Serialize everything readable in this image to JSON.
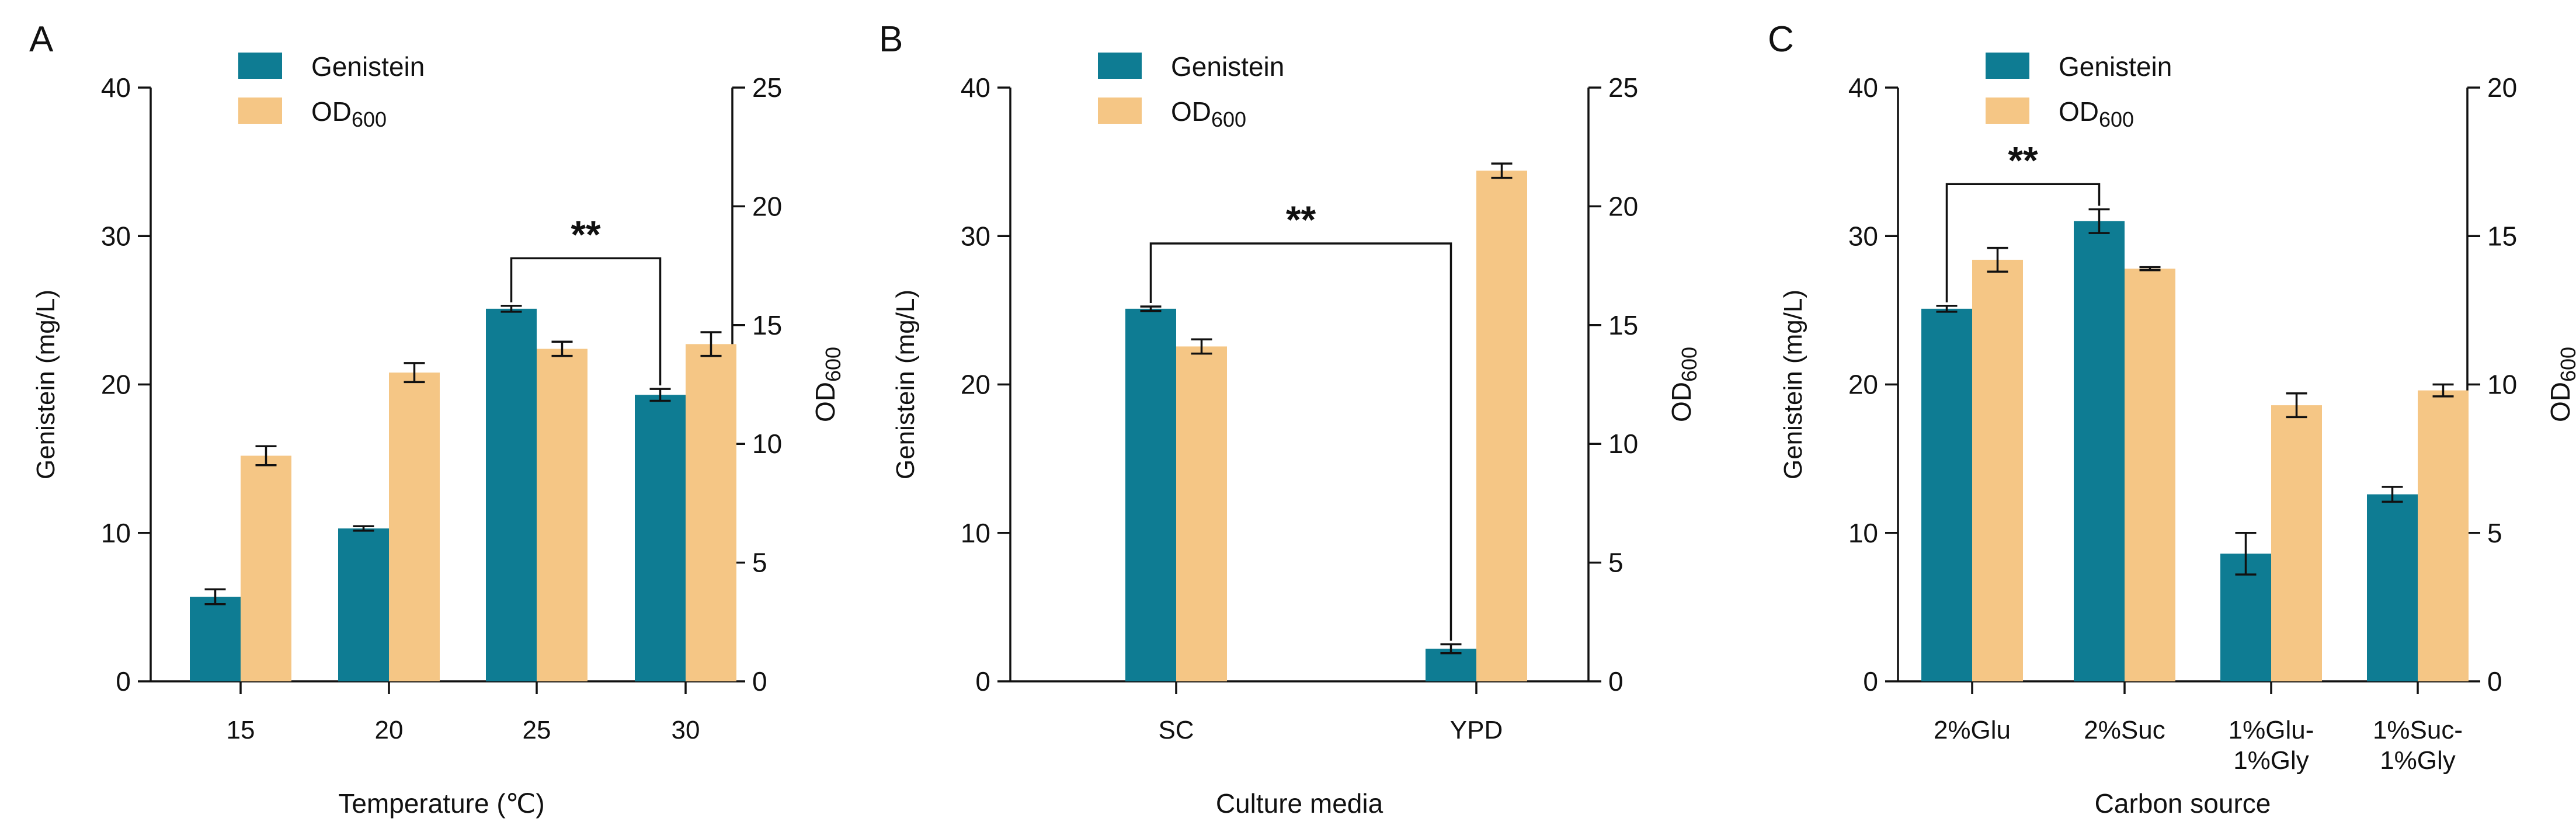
{
  "figure": {
    "colors": {
      "genistein": "#0E7C93",
      "od600": "#F5C685",
      "axis": "#111111"
    },
    "legend": {
      "genistein": "Genistein",
      "od_base": "OD",
      "od_sub": "600"
    }
  },
  "chart_data": [
    {
      "type": "bar",
      "panel_label": "A",
      "xlabel": "Temperature (℃)",
      "ylabel": "Genistein (mg/L)",
      "y2label_base": "OD",
      "y2label_sub": "600",
      "categories": [
        "15",
        "20",
        "25",
        "30"
      ],
      "category_labels": [
        [
          "15"
        ],
        [
          "20"
        ],
        [
          "25"
        ],
        [
          "30"
        ]
      ],
      "ylim": [
        0,
        40
      ],
      "yticks": [
        "0",
        "10",
        "20",
        "30",
        "40"
      ],
      "y2lim": [
        0,
        25
      ],
      "y2ticks": [
        "0",
        "5",
        "10",
        "15",
        "20",
        "25"
      ],
      "series": [
        {
          "name": "Genistein",
          "axis": "left",
          "values": [
            5.7,
            10.3,
            25.1,
            19.3
          ],
          "errors": [
            0.5,
            0.15,
            0.2,
            0.4
          ]
        },
        {
          "name": "OD600",
          "axis": "right",
          "values": [
            9.5,
            13.0,
            14.0,
            14.2
          ],
          "errors": [
            0.4,
            0.4,
            0.3,
            0.5
          ]
        }
      ],
      "significance": {
        "label": "**",
        "from_category": 2,
        "to_category": 3,
        "level": 28.5
      }
    },
    {
      "type": "bar",
      "panel_label": "B",
      "xlabel": "Culture media",
      "ylabel": "Genistein (mg/L)",
      "y2label_base": "OD",
      "y2label_sub": "600",
      "categories": [
        "SC",
        "YPD"
      ],
      "category_labels": [
        [
          "SC"
        ],
        [
          "YPD"
        ]
      ],
      "ylim": [
        0,
        40
      ],
      "yticks": [
        "0",
        "10",
        "20",
        "30",
        "40"
      ],
      "y2lim": [
        0,
        25
      ],
      "y2ticks": [
        "0",
        "5",
        "10",
        "15",
        "20",
        "25"
      ],
      "series": [
        {
          "name": "Genistein",
          "axis": "left",
          "values": [
            25.1,
            2.2
          ],
          "errors": [
            0.15,
            0.3
          ]
        },
        {
          "name": "OD600",
          "axis": "right",
          "values": [
            14.1,
            21.5
          ],
          "errors": [
            0.3,
            0.3
          ]
        }
      ],
      "significance": {
        "label": "**",
        "from_category": 0,
        "to_category": 1,
        "level": 29.5
      }
    },
    {
      "type": "bar",
      "panel_label": "C",
      "xlabel": "Carbon source",
      "ylabel": "Genistein (mg/L)",
      "y2label_base": "OD",
      "y2label_sub": "600",
      "categories": [
        "2%Glu",
        "2%Suc",
        "1%Glu-1%Gly",
        "1%Suc-1%Gly"
      ],
      "category_labels": [
        [
          "2%Glu"
        ],
        [
          "2%Suc"
        ],
        [
          "1%Glu-",
          "1%Gly"
        ],
        [
          "1%Suc-",
          "1%Gly"
        ]
      ],
      "ylim": [
        0,
        40
      ],
      "yticks": [
        "0",
        "10",
        "20",
        "30",
        "40"
      ],
      "y2lim": [
        0,
        20
      ],
      "y2ticks": [
        "0",
        "5",
        "10",
        "15",
        "20"
      ],
      "series": [
        {
          "name": "Genistein",
          "axis": "left",
          "values": [
            25.1,
            31.0,
            8.6,
            12.6
          ],
          "errors": [
            0.2,
            0.8,
            1.4,
            0.5
          ]
        },
        {
          "name": "OD600",
          "axis": "right",
          "values": [
            14.2,
            13.9,
            9.3,
            9.8
          ],
          "errors": [
            0.4,
            0.05,
            0.4,
            0.2
          ]
        }
      ],
      "significance": {
        "label": "**",
        "from_category": 0,
        "to_category": 1,
        "level": 33.5
      }
    }
  ]
}
